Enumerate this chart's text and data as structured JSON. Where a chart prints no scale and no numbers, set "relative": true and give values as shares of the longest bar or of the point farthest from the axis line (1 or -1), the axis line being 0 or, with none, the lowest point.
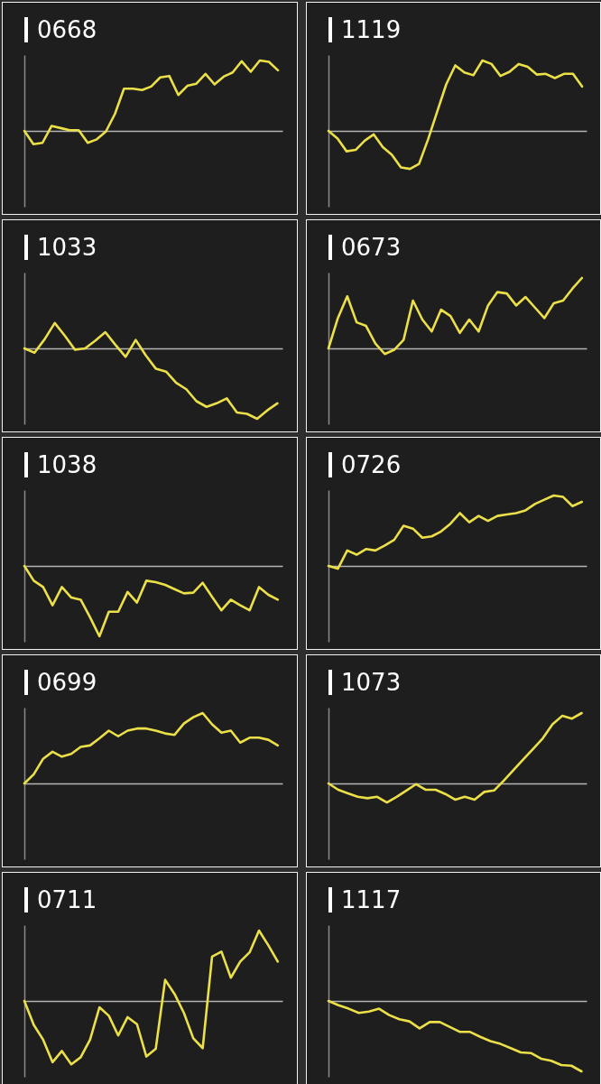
{
  "chart_data": [
    {
      "type": "line",
      "title": "0668",
      "tick_labels": false,
      "relative": true,
      "categories": [
        null,
        null,
        null,
        null,
        null,
        null,
        null,
        null,
        null,
        null,
        null,
        null,
        null,
        null,
        null,
        null,
        null,
        null,
        null,
        null,
        null,
        null,
        null,
        null,
        null,
        null,
        null,
        null,
        null
      ],
      "series": [
        {
          "color": "#ece048",
          "values": [
            0,
            -0.19,
            -0.17,
            0.07,
            0.04,
            0.01,
            0.01,
            -0.17,
            -0.12,
            -0.01,
            0.24,
            0.6,
            0.6,
            0.58,
            0.63,
            0.76,
            0.78,
            0.51,
            0.64,
            0.67,
            0.81,
            0.66,
            0.77,
            0.83,
            0.99,
            0.84,
            1,
            0.98,
            0.86
          ]
        }
      ]
    },
    {
      "type": "line",
      "title": "1119",
      "tick_labels": false,
      "relative": true,
      "categories": [
        null,
        null,
        null,
        null,
        null,
        null,
        null,
        null,
        null,
        null,
        null,
        null,
        null,
        null,
        null,
        null,
        null,
        null,
        null,
        null,
        null,
        null,
        null,
        null,
        null,
        null,
        null,
        null,
        null
      ],
      "series": [
        {
          "color": "#ece048",
          "values": [
            0,
            -0.11,
            -0.29,
            -0.27,
            -0.14,
            -0.05,
            -0.23,
            -0.34,
            -0.52,
            -0.54,
            -0.47,
            -0.12,
            0.27,
            0.66,
            0.93,
            0.83,
            0.79,
            1,
            0.95,
            0.78,
            0.84,
            0.95,
            0.91,
            0.8,
            0.81,
            0.75,
            0.81,
            0.81,
            0.63
          ]
        }
      ]
    },
    {
      "type": "line",
      "title": "1033",
      "tick_labels": false,
      "relative": true,
      "categories": [
        null,
        null,
        null,
        null,
        null,
        null,
        null,
        null,
        null,
        null,
        null,
        null,
        null,
        null,
        null,
        null,
        null,
        null,
        null,
        null,
        null,
        null,
        null,
        null,
        null,
        null
      ],
      "series": [
        {
          "color": "#ece048",
          "values": [
            0,
            -0.06,
            0.13,
            0.36,
            0.18,
            -0.02,
            0,
            0.11,
            0.23,
            0.05,
            -0.12,
            0.12,
            -0.1,
            -0.29,
            -0.33,
            -0.49,
            -0.58,
            -0.75,
            -0.83,
            -0.78,
            -0.71,
            -0.91,
            -0.93,
            -1,
            -0.88,
            -0.78
          ]
        }
      ]
    },
    {
      "type": "line",
      "title": "0673",
      "tick_labels": false,
      "relative": true,
      "categories": [
        null,
        null,
        null,
        null,
        null,
        null,
        null,
        null,
        null,
        null,
        null,
        null,
        null,
        null,
        null,
        null,
        null,
        null,
        null,
        null,
        null,
        null,
        null,
        null,
        null,
        null,
        null,
        null
      ],
      "series": [
        {
          "color": "#ece048",
          "values": [
            0,
            0.43,
            0.74,
            0.37,
            0.32,
            0.07,
            -0.08,
            -0.02,
            0.12,
            0.68,
            0.41,
            0.24,
            0.55,
            0.46,
            0.22,
            0.41,
            0.24,
            0.61,
            0.8,
            0.78,
            0.61,
            0.73,
            0.58,
            0.43,
            0.64,
            0.68,
            0.85,
            1
          ]
        }
      ]
    },
    {
      "type": "line",
      "title": "1038",
      "tick_labels": false,
      "relative": true,
      "categories": [
        null,
        null,
        null,
        null,
        null,
        null,
        null,
        null,
        null,
        null,
        null,
        null,
        null,
        null,
        null,
        null,
        null,
        null,
        null,
        null,
        null,
        null,
        null,
        null,
        null,
        null,
        null,
        null
      ],
      "series": [
        {
          "color": "#ece048",
          "values": [
            0,
            -0.21,
            -0.3,
            -0.56,
            -0.3,
            -0.45,
            -0.48,
            -0.73,
            -1,
            -0.65,
            -0.65,
            -0.37,
            -0.52,
            -0.21,
            -0.23,
            -0.27,
            -0.33,
            -0.39,
            -0.38,
            -0.24,
            -0.44,
            -0.63,
            -0.48,
            -0.56,
            -0.63,
            -0.3,
            -0.41,
            -0.48
          ]
        }
      ]
    },
    {
      "type": "line",
      "title": "0726",
      "tick_labels": false,
      "relative": true,
      "categories": [
        null,
        null,
        null,
        null,
        null,
        null,
        null,
        null,
        null,
        null,
        null,
        null,
        null,
        null,
        null,
        null,
        null,
        null,
        null,
        null,
        null,
        null,
        null,
        null,
        null,
        null,
        null,
        null
      ],
      "series": [
        {
          "color": "#ece048",
          "values": [
            0,
            -0.04,
            0.22,
            0.16,
            0.24,
            0.22,
            0.29,
            0.37,
            0.57,
            0.53,
            0.4,
            0.42,
            0.49,
            0.6,
            0.75,
            0.62,
            0.71,
            0.64,
            0.71,
            0.73,
            0.75,
            0.79,
            0.88,
            0.94,
            1,
            0.98,
            0.85,
            0.91
          ]
        }
      ]
    },
    {
      "type": "line",
      "title": "0699",
      "tick_labels": false,
      "relative": true,
      "categories": [
        null,
        null,
        null,
        null,
        null,
        null,
        null,
        null,
        null,
        null,
        null,
        null,
        null,
        null,
        null,
        null,
        null,
        null,
        null,
        null,
        null,
        null,
        null,
        null,
        null,
        null,
        null,
        null
      ],
      "series": [
        {
          "color": "#ece048",
          "values": [
            0,
            0.13,
            0.35,
            0.45,
            0.38,
            0.42,
            0.52,
            0.54,
            0.64,
            0.75,
            0.67,
            0.75,
            0.78,
            0.78,
            0.75,
            0.71,
            0.69,
            0.85,
            0.94,
            1,
            0.84,
            0.72,
            0.75,
            0.58,
            0.65,
            0.65,
            0.62,
            0.54
          ]
        }
      ]
    },
    {
      "type": "line",
      "title": "1073",
      "tick_labels": false,
      "relative": true,
      "categories": [
        null,
        null,
        null,
        null,
        null,
        null,
        null,
        null,
        null,
        null,
        null,
        null,
        null,
        null,
        null,
        null,
        null,
        null,
        null,
        null,
        null,
        null,
        null,
        null,
        null,
        null,
        null
      ],
      "series": [
        {
          "color": "#ece048",
          "values": [
            0,
            -0.09,
            -0.14,
            -0.19,
            -0.21,
            -0.19,
            -0.27,
            -0.19,
            -0.1,
            -0.01,
            -0.09,
            -0.09,
            -0.15,
            -0.23,
            -0.19,
            -0.23,
            -0.12,
            -0.1,
            0.04,
            0.19,
            0.34,
            0.49,
            0.64,
            0.84,
            0.96,
            0.92,
            1
          ]
        }
      ]
    },
    {
      "type": "line",
      "title": "0711",
      "tick_labels": false,
      "relative": true,
      "categories": [
        null,
        null,
        null,
        null,
        null,
        null,
        null,
        null,
        null,
        null,
        null,
        null,
        null,
        null,
        null,
        null,
        null,
        null,
        null,
        null,
        null,
        null,
        null,
        null,
        null,
        null,
        null,
        null
      ],
      "series": [
        {
          "color": "#ece048",
          "values": [
            0,
            -0.34,
            -0.55,
            -0.87,
            -0.71,
            -0.9,
            -0.8,
            -0.55,
            -0.09,
            -0.21,
            -0.49,
            -0.23,
            -0.33,
            -0.79,
            -0.68,
            0.3,
            0.1,
            -0.17,
            -0.53,
            -0.67,
            0.63,
            0.7,
            0.33,
            0.56,
            0.69,
            1,
            0.79,
            0.56
          ]
        }
      ]
    },
    {
      "type": "line",
      "title": "1117",
      "tick_labels": false,
      "relative": true,
      "categories": [
        null,
        null,
        null,
        null,
        null,
        null,
        null,
        null,
        null,
        null,
        null,
        null,
        null,
        null,
        null,
        null,
        null,
        null,
        null,
        null,
        null,
        null,
        null,
        null,
        null,
        null
      ],
      "series": [
        {
          "color": "#ece048",
          "values": [
            0,
            -0.06,
            -0.11,
            -0.17,
            -0.15,
            -0.11,
            -0.2,
            -0.26,
            -0.29,
            -0.39,
            -0.3,
            -0.3,
            -0.37,
            -0.44,
            -0.44,
            -0.51,
            -0.57,
            -0.61,
            -0.67,
            -0.73,
            -0.74,
            -0.82,
            -0.85,
            -0.91,
            -0.92,
            -1
          ]
        }
      ]
    }
  ]
}
